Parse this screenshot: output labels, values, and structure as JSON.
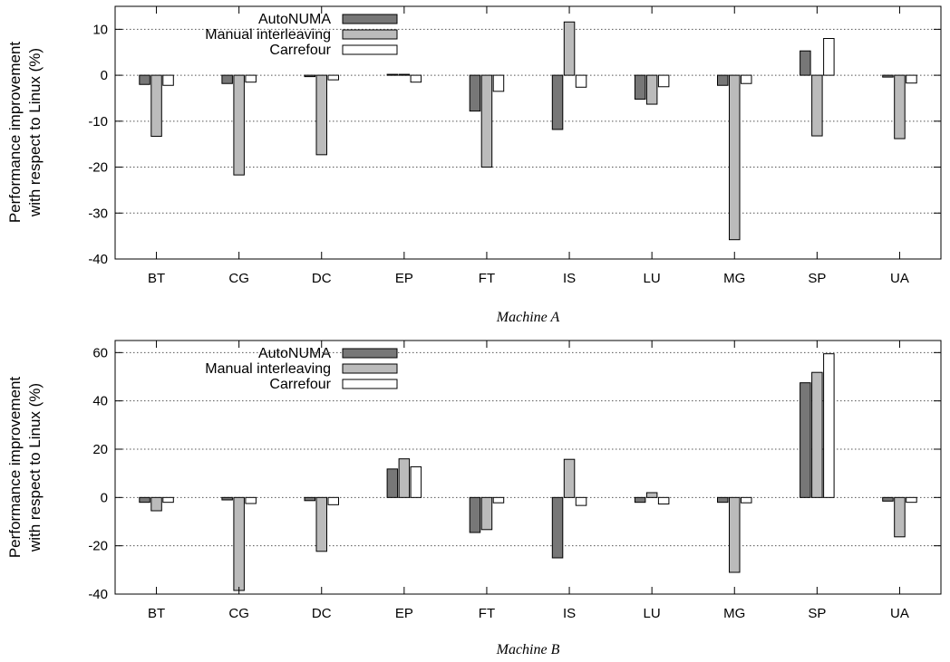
{
  "chart_data": [
    {
      "type": "bar",
      "caption": "Machine A",
      "ylabel_lines": [
        "Performance improvement",
        "with respect to Linux (%)"
      ],
      "ylim": [
        -40,
        15
      ],
      "yticks": [
        -40,
        -30,
        -20,
        -10,
        0,
        10
      ],
      "grid": true,
      "legend_position": "top-left",
      "categories": [
        "BT",
        "CG",
        "DC",
        "EP",
        "FT",
        "IS",
        "LU",
        "MG",
        "SP",
        "UA"
      ],
      "series": [
        {
          "name": "AutoNUMA",
          "color": "#777777",
          "values": [
            -2,
            -1.8,
            -0.3,
            0.2,
            -7.8,
            -11.8,
            -5.2,
            -2.2,
            5.3,
            -0.4
          ]
        },
        {
          "name": "Manual interleaving",
          "color": "#bbbbbb",
          "values": [
            -13.3,
            -21.7,
            -17.3,
            0.2,
            -20,
            11.6,
            -6.3,
            -35.8,
            -13.2,
            -13.8
          ]
        },
        {
          "name": "Carrefour",
          "color": "#ffffff",
          "values": [
            -2.2,
            -1.5,
            -1,
            -1.5,
            -3.5,
            -2.6,
            -2.5,
            -1.8,
            8,
            -1.7
          ]
        }
      ]
    },
    {
      "type": "bar",
      "caption": "Machine B",
      "ylabel_lines": [
        "Performance improvement",
        "with respect to Linux (%)"
      ],
      "ylim": [
        -40,
        65
      ],
      "yticks": [
        -40,
        -20,
        0,
        20,
        40,
        60
      ],
      "grid": true,
      "legend_position": "top-left",
      "categories": [
        "BT",
        "CG",
        "DC",
        "EP",
        "FT",
        "IS",
        "LU",
        "MG",
        "SP",
        "UA"
      ],
      "series": [
        {
          "name": "AutoNUMA",
          "color": "#777777",
          "values": [
            -2,
            -1,
            -1.3,
            11.8,
            -14.5,
            -25,
            -2,
            -2,
            47.5,
            -1.5
          ]
        },
        {
          "name": "Manual interleaving",
          "color": "#bbbbbb",
          "values": [
            -5.5,
            -38.5,
            -22.3,
            16,
            -13.3,
            15.8,
            2,
            -31,
            51.8,
            -16.3
          ]
        },
        {
          "name": "Carrefour",
          "color": "#ffffff",
          "values": [
            -2,
            -2.5,
            -3,
            12.7,
            -2.2,
            -3.3,
            -2.7,
            -2.2,
            59.5,
            -2
          ]
        }
      ]
    }
  ]
}
